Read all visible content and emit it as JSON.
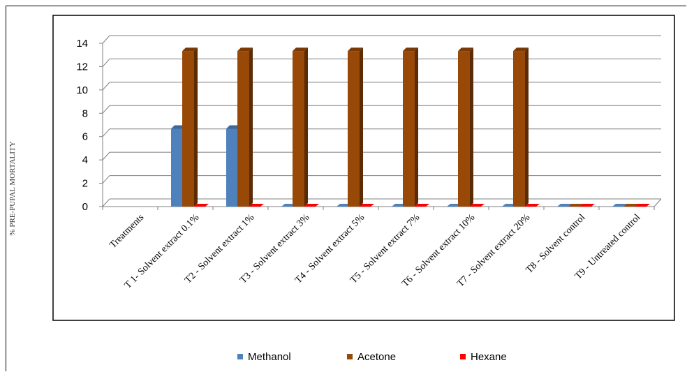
{
  "chart_data": {
    "type": "bar",
    "title": "",
    "xlabel": "",
    "ylabel": "% PRE-PUPAL MORTALITY",
    "ylim": [
      0,
      14
    ],
    "yticks": [
      0,
      2,
      4,
      6,
      8,
      10,
      12,
      14
    ],
    "grid": true,
    "legend_position": "bottom",
    "categories": [
      "Treatments",
      "T 1- Solvent extract 0.1%",
      "T2 - Solvent extract 1%",
      "T3 - Solvent extract 3%",
      "T4 - Solvent extract 5%",
      "T5 - Solvent extract 7%",
      "T6 - Solvent extract 10%",
      "T7 - Solvent extract 20%",
      "T8 - Solvent control",
      "T9 - Untreated control"
    ],
    "series": [
      {
        "name": "Methanol",
        "color": "#4f81bd",
        "values": [
          null,
          6.67,
          6.67,
          0,
          0,
          0,
          0,
          0,
          0,
          0
        ]
      },
      {
        "name": "Acetone",
        "color": "#984807",
        "values": [
          null,
          13.33,
          13.33,
          13.33,
          13.33,
          13.33,
          13.33,
          13.33,
          0,
          0
        ]
      },
      {
        "name": "Hexane",
        "color": "#ff0000",
        "values": [
          null,
          0,
          0,
          0,
          0,
          0,
          0,
          0,
          0,
          0
        ]
      }
    ]
  }
}
